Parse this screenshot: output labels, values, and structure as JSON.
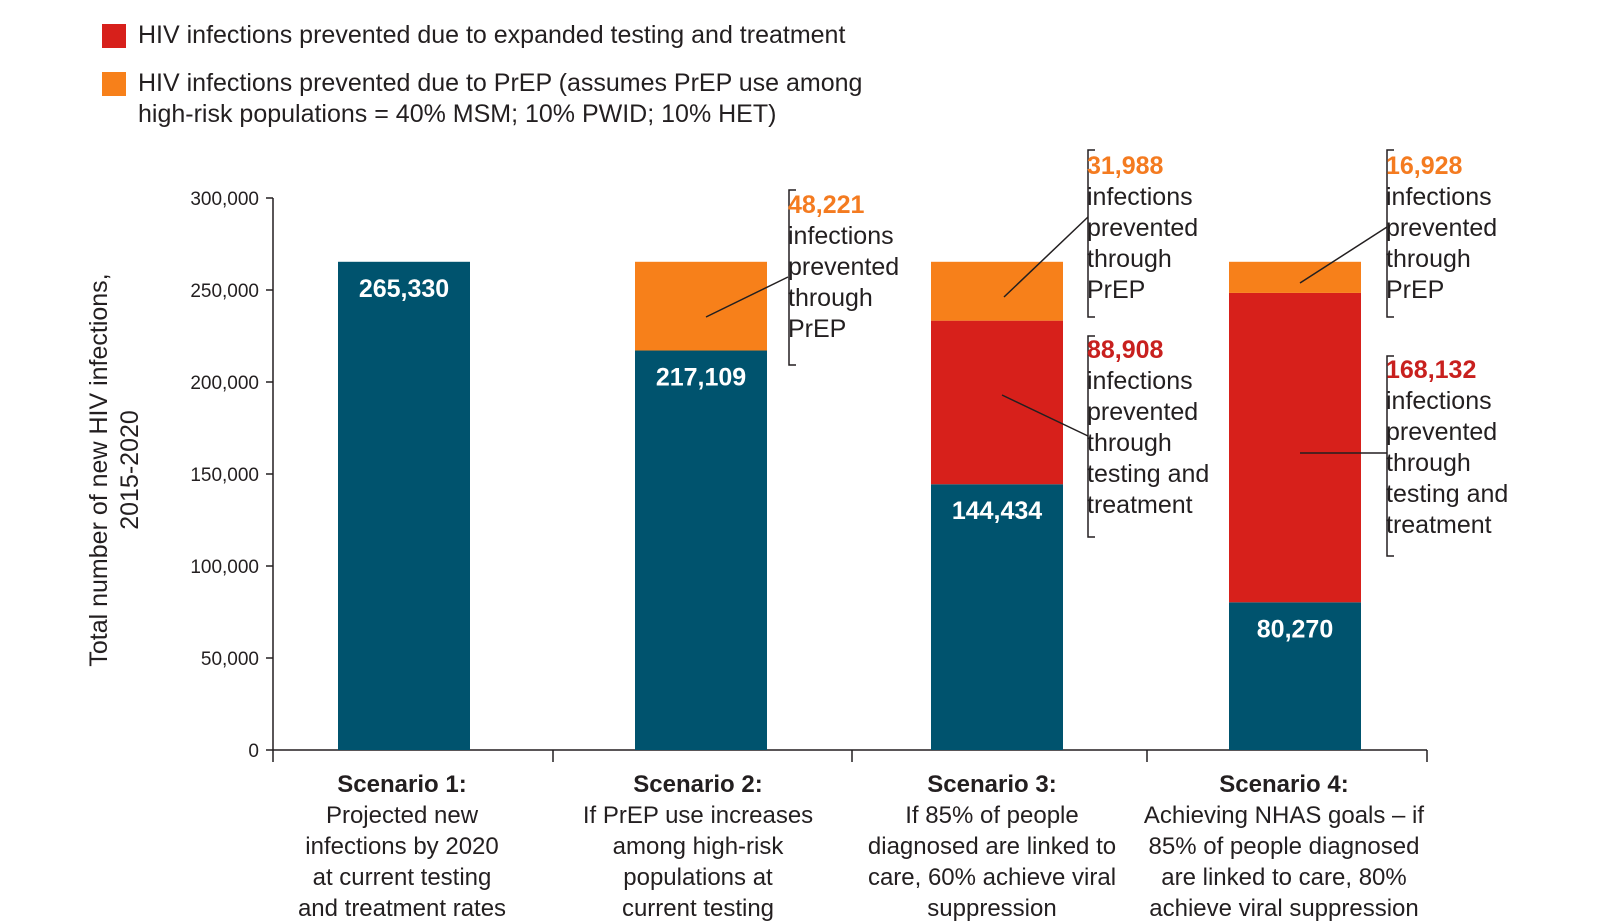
{
  "legend": [
    {
      "label": "HIV infections prevented due to expanded testing and treatment",
      "color": "#d7201b"
    },
    {
      "label_lines": [
        "HIV infections prevented due to PrEP (assumes PrEP use among",
        "high-risk populations = 40% MSM; 10% PWID; 10% HET)"
      ],
      "color": "#f7801a"
    }
  ],
  "colors": {
    "remaining": "#00536e",
    "testing": "#d7201b",
    "prep": "#f7801a",
    "prep_text": "#f47b20",
    "testing_text": "#c8201e"
  },
  "chart_data": {
    "type": "bar",
    "stacked": true,
    "ylabel_lines": [
      "Total number of new HIV infections,",
      "2015-2020"
    ],
    "ylim": [
      0,
      300000
    ],
    "yticks": [
      0,
      50000,
      100000,
      150000,
      200000,
      250000,
      300000
    ],
    "ytick_labels": [
      "0",
      "50,000",
      "100,000",
      "150,000",
      "200,000",
      "250,000",
      "300,000"
    ],
    "categories": [
      "Scenario 1",
      "Scenario 2",
      "Scenario 3",
      "Scenario 4"
    ],
    "series": [
      {
        "name": "New HIV infections",
        "values": [
          265330,
          217109,
          144434,
          80270
        ],
        "labels": [
          "265,330",
          "217,109",
          "144,434",
          "80,270"
        ]
      },
      {
        "name": "HIV infections prevented due to expanded testing and treatment",
        "values": [
          0,
          0,
          88908,
          168132
        ]
      },
      {
        "name": "HIV infections prevented due to PrEP",
        "values": [
          0,
          48221,
          31988,
          16928
        ]
      }
    ],
    "annotations": [
      {
        "bar": 1,
        "series": 2,
        "value": "48,221",
        "lines": [
          "infections",
          "prevented",
          "through",
          "PrEP"
        ]
      },
      {
        "bar": 2,
        "series": 2,
        "value": "31,988",
        "lines": [
          "infections",
          "prevented",
          "through",
          "PrEP"
        ]
      },
      {
        "bar": 2,
        "series": 1,
        "value": "88,908",
        "lines": [
          "infections",
          "prevented",
          "through",
          "testing and",
          "treatment"
        ]
      },
      {
        "bar": 3,
        "series": 2,
        "value": "16,928",
        "lines": [
          "infections",
          "prevented",
          "through",
          "PrEP"
        ]
      },
      {
        "bar": 3,
        "series": 1,
        "value": "168,132",
        "lines": [
          "infections",
          "prevented",
          "through",
          "testing and",
          "treatment"
        ]
      }
    ],
    "category_labels": [
      {
        "title": "Scenario 1:",
        "lines": [
          "Projected new",
          "infections by 2020",
          "at current testing",
          "and treatment rates"
        ]
      },
      {
        "title": "Scenario 2:",
        "lines": [
          "If PrEP use increases",
          "among high-risk",
          "populations at",
          "current testing"
        ]
      },
      {
        "title": "Scenario 3:",
        "lines": [
          "If 85% of people",
          "diagnosed are linked to",
          "care, 60% achieve viral",
          "suppression"
        ]
      },
      {
        "title": "Scenario 4:",
        "lines": [
          "Achieving NHAS goals – if",
          "85% of people diagnosed",
          "are linked to care, 80%",
          "achieve viral suppression"
        ]
      }
    ]
  }
}
